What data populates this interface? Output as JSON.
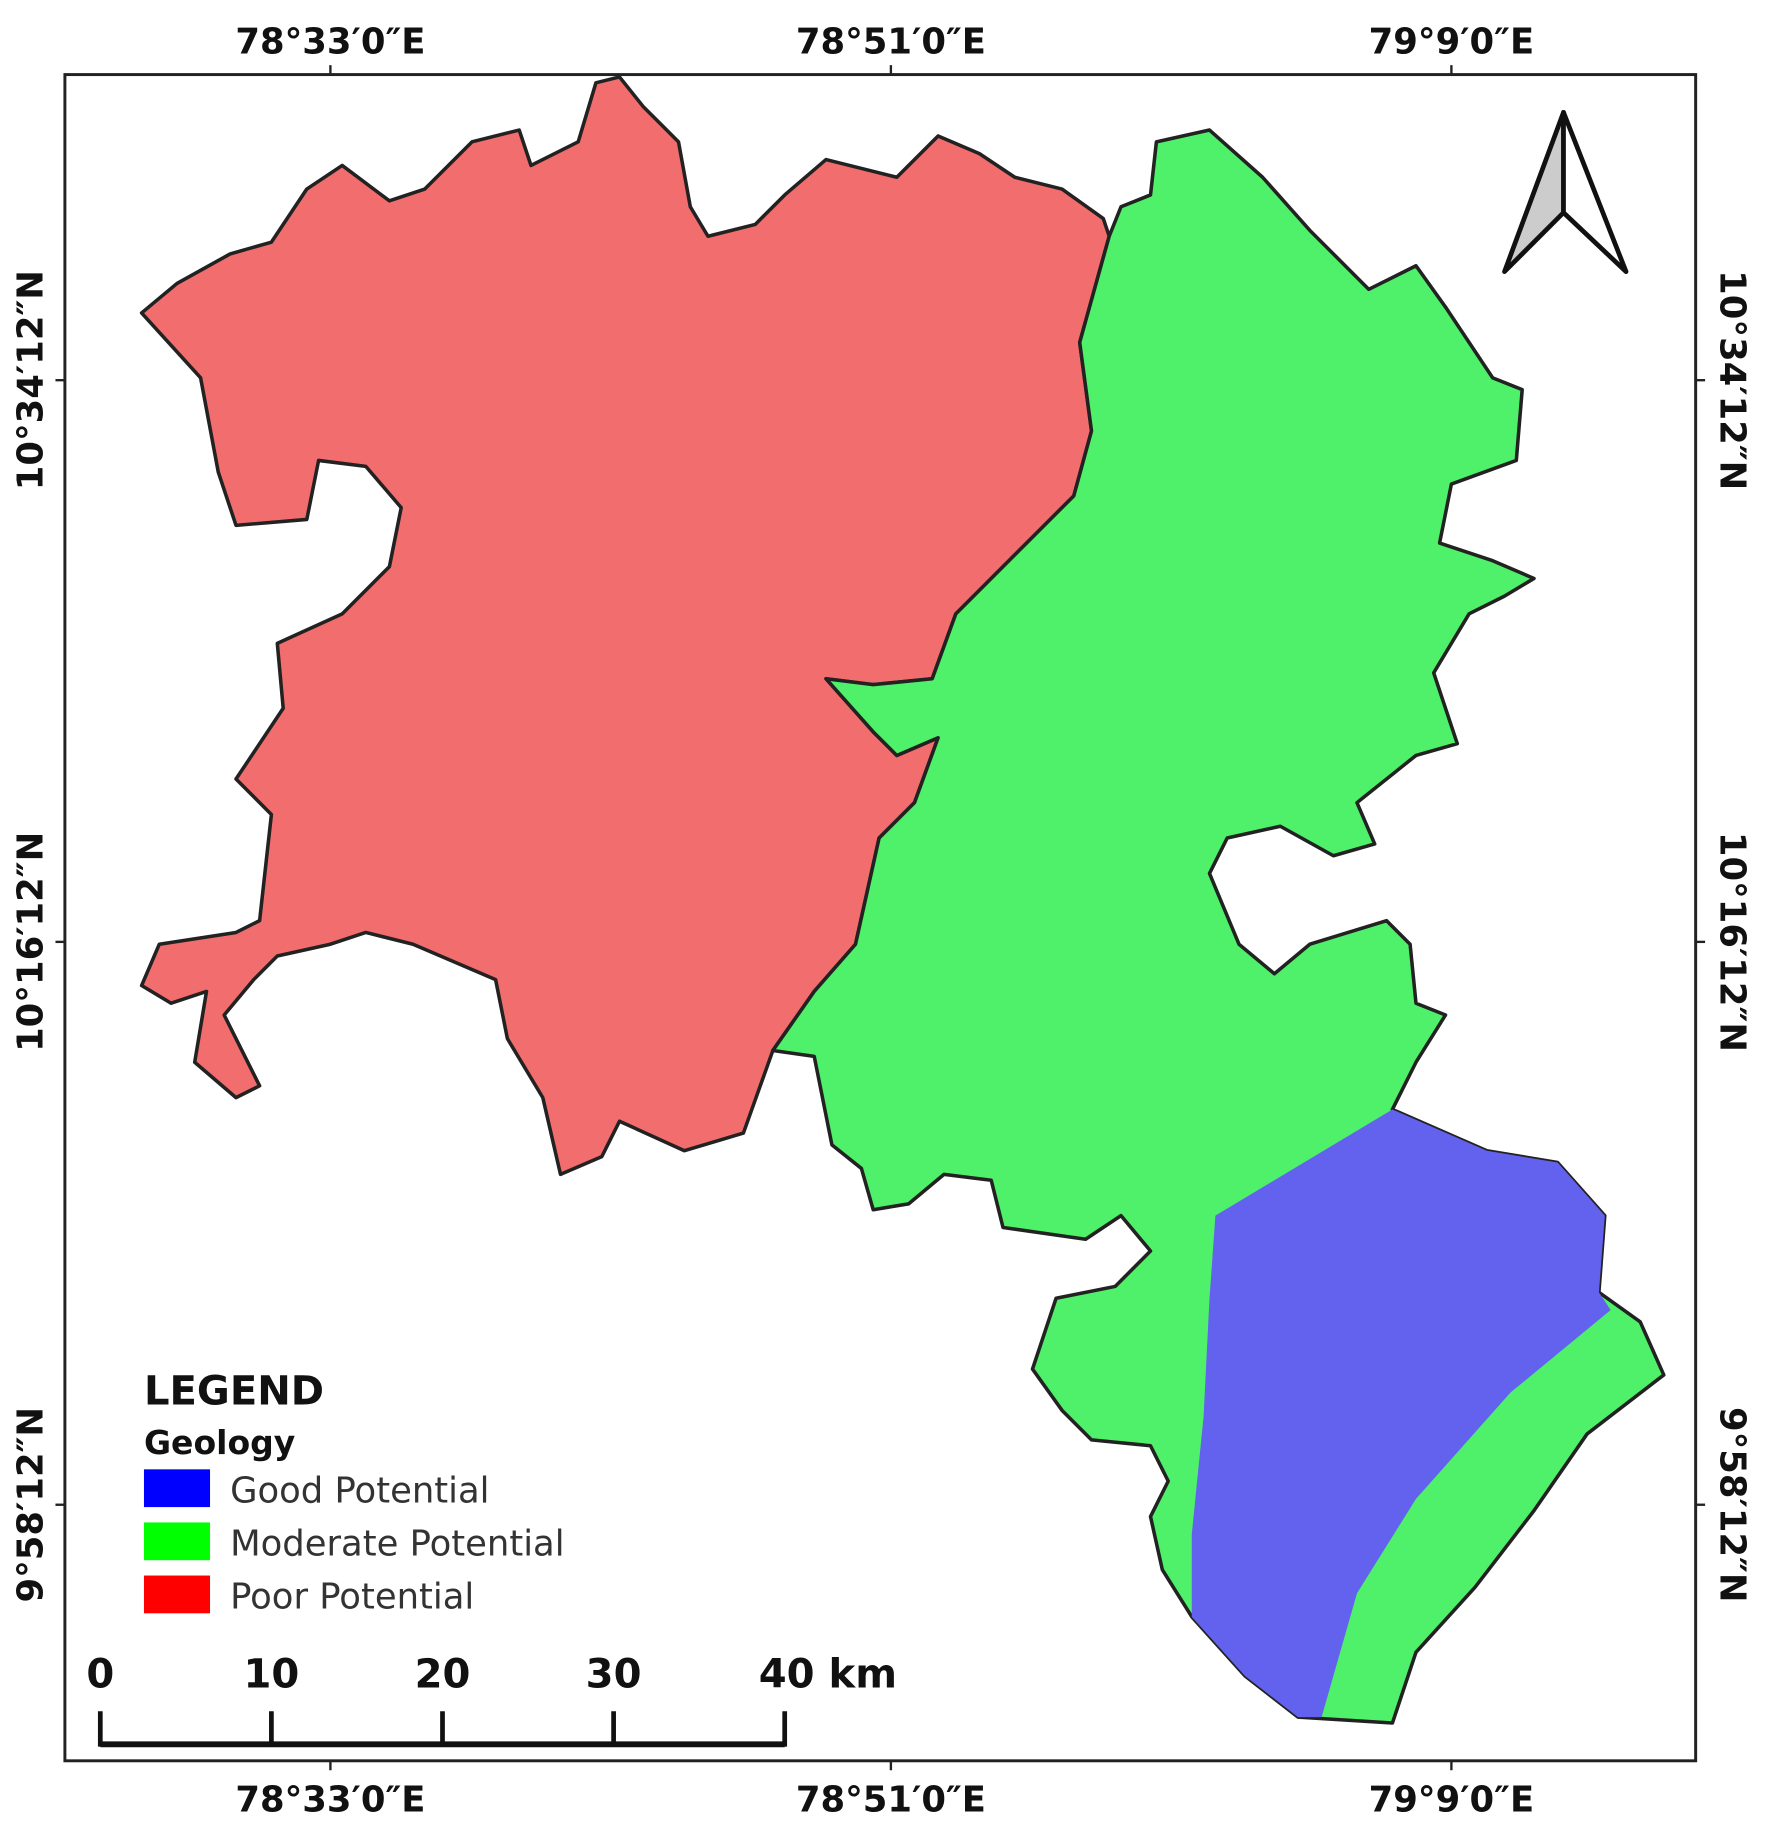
{
  "coordinates": {
    "top": [
      "78°33′0″E",
      "78°51′0″E",
      "79°9′0″E"
    ],
    "bottom": [
      "78°33′0″E",
      "78°51′0″E",
      "79°9′0″E"
    ],
    "left": [
      "10°34′12″N",
      "10°16′12″N",
      "9°58′12″N"
    ],
    "right": [
      "10°34′12″N",
      "10°16′12″N",
      "9°58′12″N"
    ]
  },
  "legend": {
    "title": "LEGEND",
    "subtitle": "Geology",
    "items": [
      {
        "label": "Good Potential",
        "color": "#0000ff"
      },
      {
        "label": "Moderate Potential",
        "color": "#00ff00"
      },
      {
        "label": "Poor Potential",
        "color": "#ff0000"
      }
    ]
  },
  "scale_bar": {
    "labels": [
      "0",
      "10",
      "20",
      "30",
      "40 km"
    ]
  }
}
